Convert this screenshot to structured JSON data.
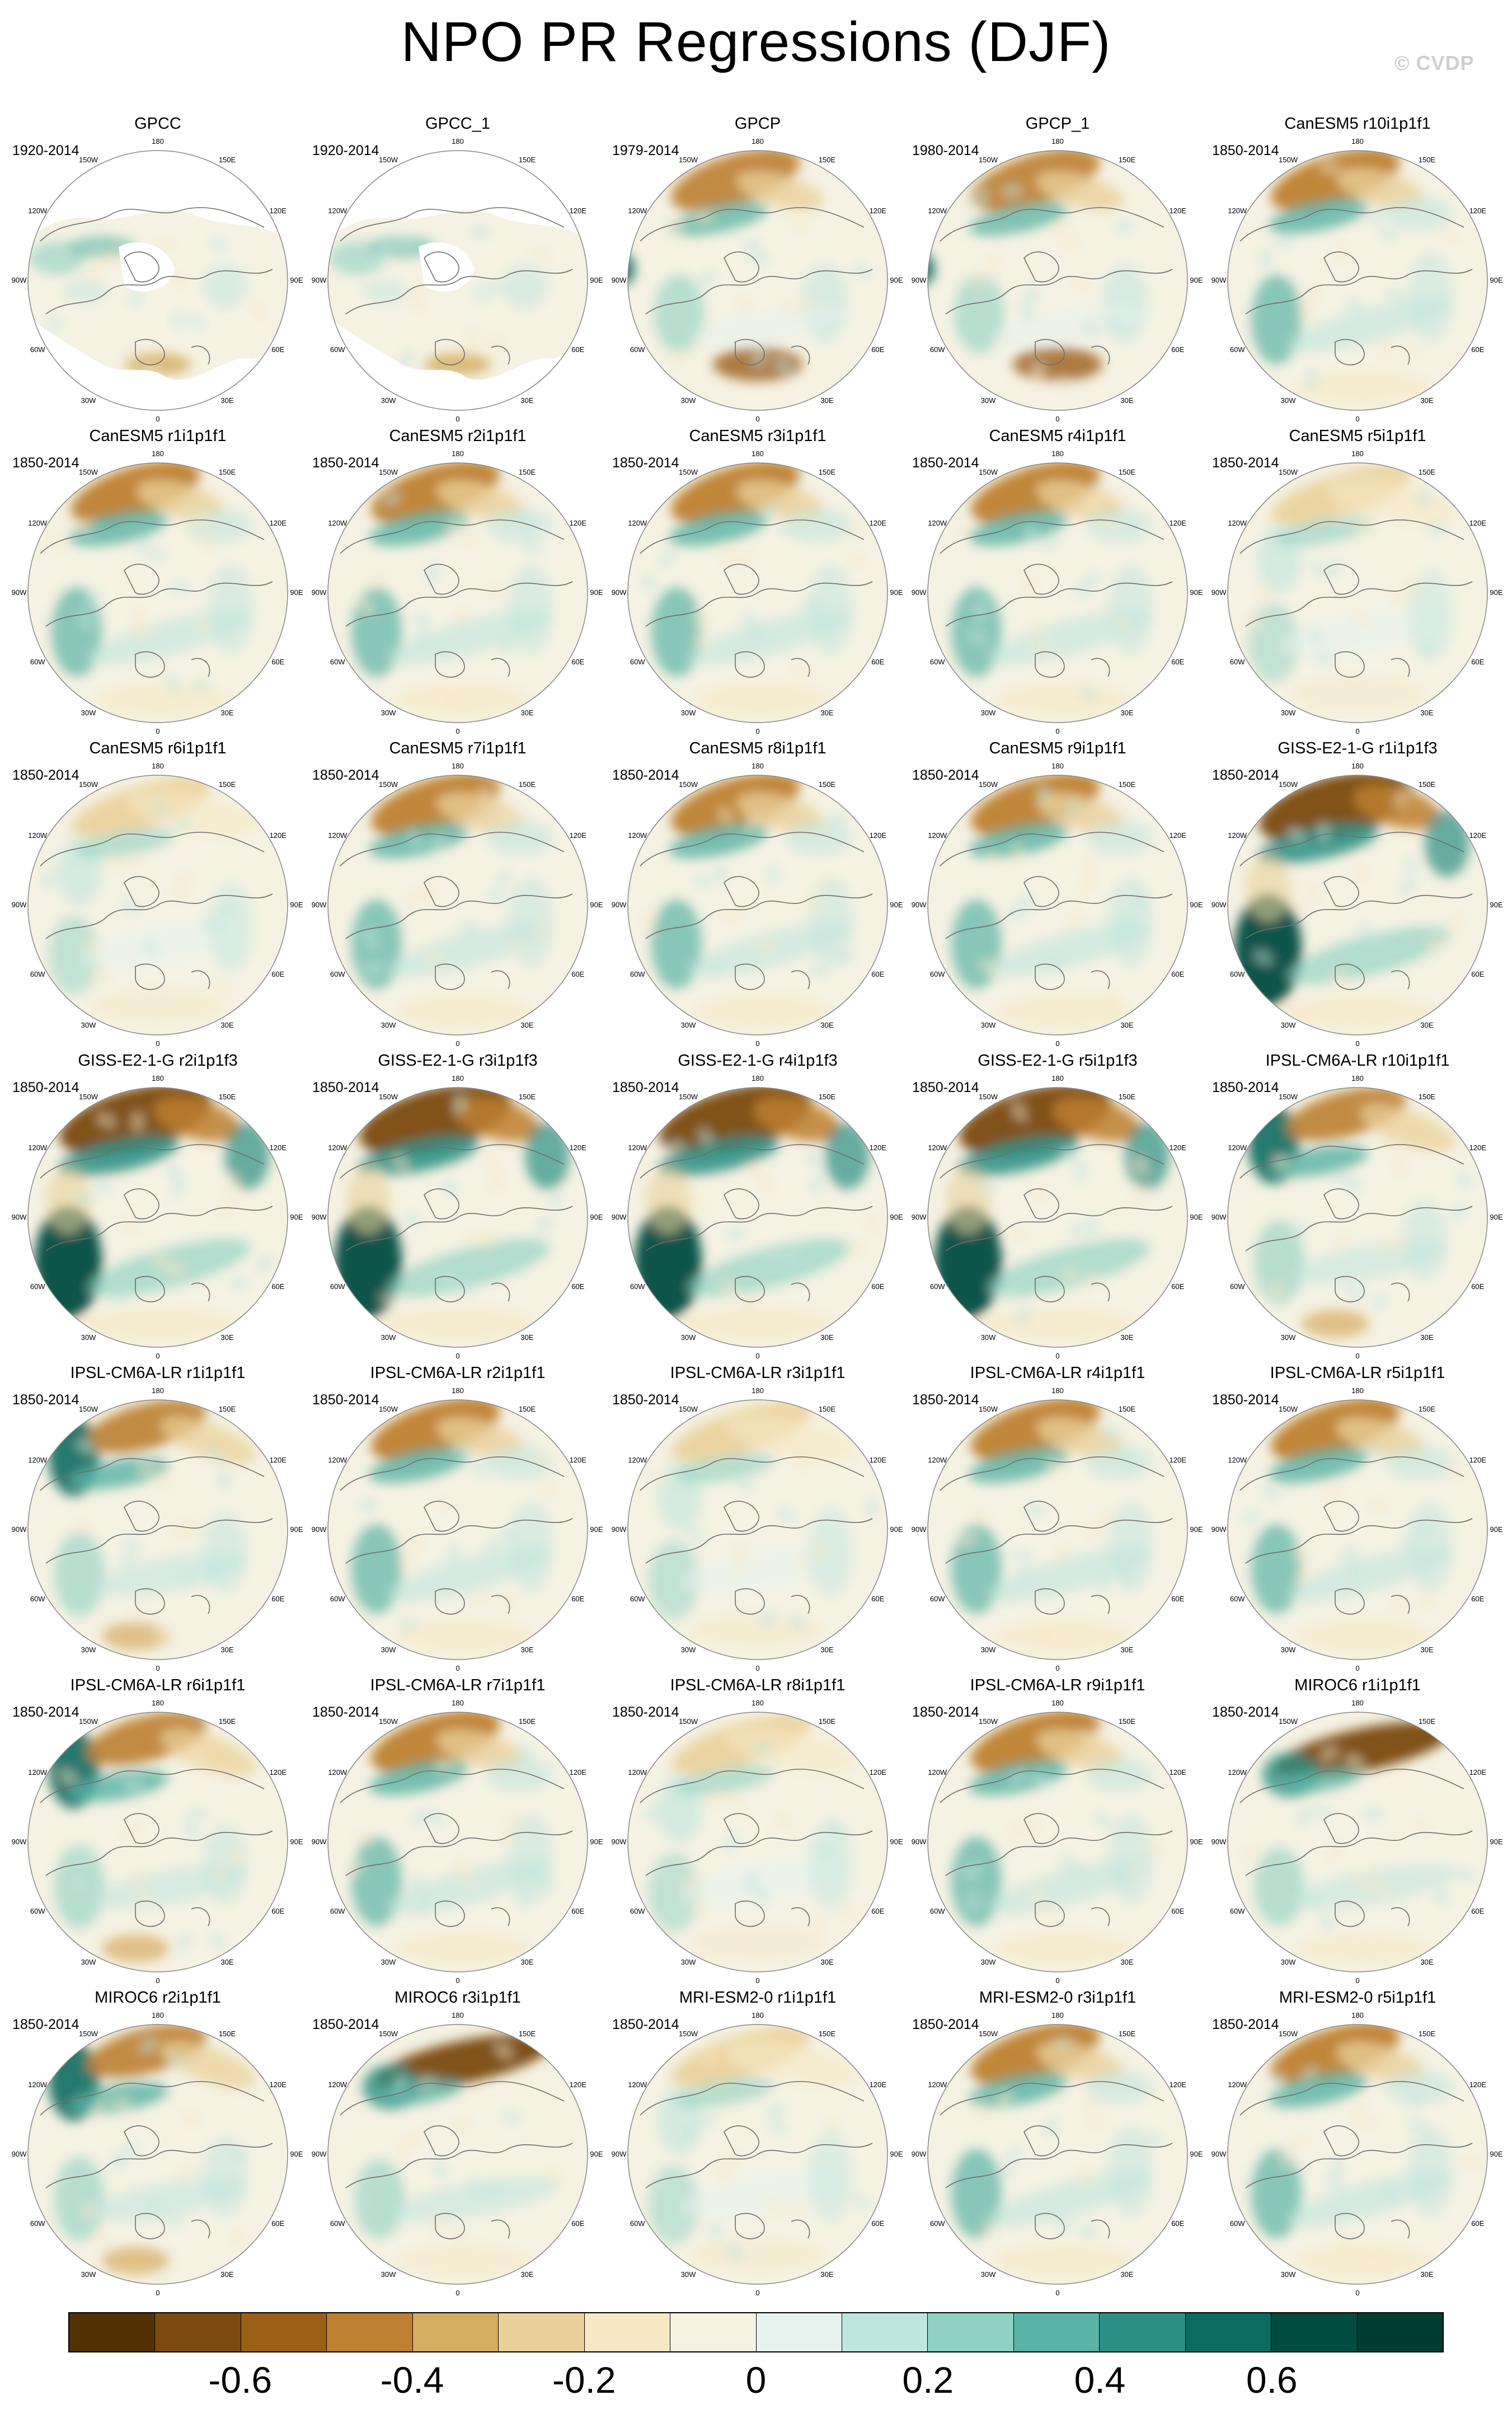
{
  "title": "NPO PR Regressions (DJF)",
  "watermark": "© CVDP",
  "panel_lon_labels": [
    "180",
    "150E",
    "120E",
    "90E",
    "60E",
    "30E",
    "0",
    "30W",
    "60W",
    "90W",
    "120W",
    "150W"
  ],
  "map_colors": {
    "land_outline": "#6e6e6e",
    "frame": "#888888",
    "missing": "#ffffff"
  },
  "colorbar": {
    "colors": [
      "#543005",
      "#7a4a0f",
      "#9c5f16",
      "#bd7f30",
      "#d5ad5f",
      "#ead09a",
      "#f6e8c4",
      "#f5f2e3",
      "#e5f2ee",
      "#bfe6de",
      "#8fd1c3",
      "#59b3a6",
      "#2b8f85",
      "#0b6b60",
      "#014c41",
      "#003c30"
    ],
    "labels": [
      "-0.6",
      "-0.4",
      "-0.2",
      "0",
      "0.2",
      "0.4",
      "0.6"
    ]
  },
  "panels": [
    {
      "title": "GPCC",
      "years": "1920-2014",
      "pattern": "obs_masked"
    },
    {
      "title": "GPCC_1",
      "years": "1920-2014",
      "pattern": "obs_masked"
    },
    {
      "title": "GPCP",
      "years": "1979-2014",
      "pattern": "obs"
    },
    {
      "title": "GPCP_1",
      "years": "1980-2014",
      "pattern": "obs"
    },
    {
      "title": "CanESM5 r10i1p1f1",
      "years": "1850-2014",
      "pattern": "moderate"
    },
    {
      "title": "CanESM5 r1i1p1f1",
      "years": "1850-2014",
      "pattern": "moderate"
    },
    {
      "title": "CanESM5 r2i1p1f1",
      "years": "1850-2014",
      "pattern": "moderate"
    },
    {
      "title": "CanESM5 r3i1p1f1",
      "years": "1850-2014",
      "pattern": "moderate"
    },
    {
      "title": "CanESM5 r4i1p1f1",
      "years": "1850-2014",
      "pattern": "moderate"
    },
    {
      "title": "CanESM5 r5i1p1f1",
      "years": "1850-2014",
      "pattern": "weak"
    },
    {
      "title": "CanESM5 r6i1p1f1",
      "years": "1850-2014",
      "pattern": "weak"
    },
    {
      "title": "CanESM5 r7i1p1f1",
      "years": "1850-2014",
      "pattern": "moderate"
    },
    {
      "title": "CanESM5 r8i1p1f1",
      "years": "1850-2014",
      "pattern": "moderate"
    },
    {
      "title": "CanESM5 r9i1p1f1",
      "years": "1850-2014",
      "pattern": "moderate"
    },
    {
      "title": "GISS-E2-1-G r1i1p1f3",
      "years": "1850-2014",
      "pattern": "strong"
    },
    {
      "title": "GISS-E2-1-G r2i1p1f3",
      "years": "1850-2014",
      "pattern": "strong"
    },
    {
      "title": "GISS-E2-1-G r3i1p1f3",
      "years": "1850-2014",
      "pattern": "strong"
    },
    {
      "title": "GISS-E2-1-G r4i1p1f3",
      "years": "1850-2014",
      "pattern": "strong"
    },
    {
      "title": "GISS-E2-1-G r5i1p1f3",
      "years": "1850-2014",
      "pattern": "strong"
    },
    {
      "title": "IPSL-CM6A-LR r10i1p1f1",
      "years": "1850-2014",
      "pattern": "ipsl"
    },
    {
      "title": "IPSL-CM6A-LR r1i1p1f1",
      "years": "1850-2014",
      "pattern": "ipsl"
    },
    {
      "title": "IPSL-CM6A-LR r2i1p1f1",
      "years": "1850-2014",
      "pattern": "moderate"
    },
    {
      "title": "IPSL-CM6A-LR r3i1p1f1",
      "years": "1850-2014",
      "pattern": "weak"
    },
    {
      "title": "IPSL-CM6A-LR r4i1p1f1",
      "years": "1850-2014",
      "pattern": "moderate"
    },
    {
      "title": "IPSL-CM6A-LR r5i1p1f1",
      "years": "1850-2014",
      "pattern": "moderate"
    },
    {
      "title": "IPSL-CM6A-LR r6i1p1f1",
      "years": "1850-2014",
      "pattern": "ipsl"
    },
    {
      "title": "IPSL-CM6A-LR r7i1p1f1",
      "years": "1850-2014",
      "pattern": "moderate"
    },
    {
      "title": "IPSL-CM6A-LR r8i1p1f1",
      "years": "1850-2014",
      "pattern": "weak"
    },
    {
      "title": "IPSL-CM6A-LR r9i1p1f1",
      "years": "1850-2014",
      "pattern": "moderate"
    },
    {
      "title": "MIROC6 r1i1p1f1",
      "years": "1850-2014",
      "pattern": "miroc"
    },
    {
      "title": "MIROC6 r2i1p1f1",
      "years": "1850-2014",
      "pattern": "ipsl"
    },
    {
      "title": "MIROC6 r3i1p1f1",
      "years": "1850-2014",
      "pattern": "miroc"
    },
    {
      "title": "MRI-ESM2-0 r1i1p1f1",
      "years": "1850-2014",
      "pattern": "weak"
    },
    {
      "title": "MRI-ESM2-0 r3i1p1f1",
      "years": "1850-2014",
      "pattern": "moderate"
    },
    {
      "title": "MRI-ESM2-0 r5i1p1f1",
      "years": "1850-2014",
      "pattern": "moderate"
    }
  ]
}
